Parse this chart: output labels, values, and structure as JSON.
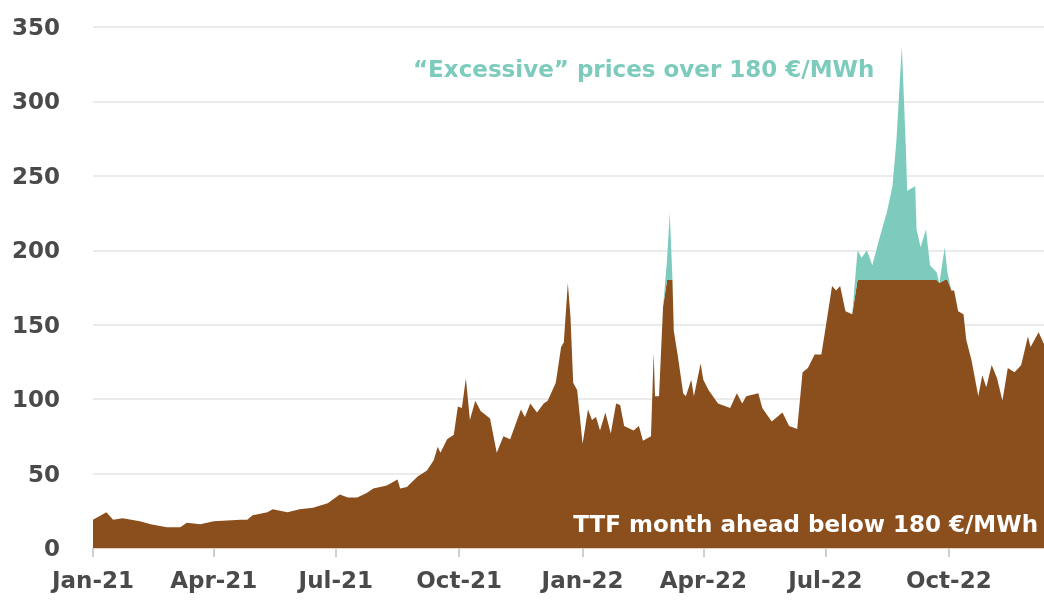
{
  "chart_data": {
    "type": "area",
    "stacked": true,
    "grid": "y",
    "x": [
      "2021-01-01",
      "2021-01-11",
      "2021-01-16",
      "2021-01-23",
      "2021-02-05",
      "2021-02-13",
      "2021-02-25",
      "2021-03-07",
      "2021-03-12",
      "2021-03-22",
      "2021-04-01",
      "2021-04-21",
      "2021-04-26",
      "2021-04-30",
      "2021-05-11",
      "2021-05-15",
      "2021-05-26",
      "2021-06-04",
      "2021-06-14",
      "2021-06-25",
      "2021-07-04",
      "2021-07-10",
      "2021-07-17",
      "2021-07-24",
      "2021-07-29",
      "2021-08-08",
      "2021-08-16",
      "2021-08-18",
      "2021-08-23",
      "2021-08-31",
      "2021-09-07",
      "2021-09-12",
      "2021-09-15",
      "2021-09-17",
      "2021-09-22",
      "2021-09-27",
      "2021-09-30",
      "2021-10-03",
      "2021-10-06",
      "2021-10-09",
      "2021-10-13",
      "2021-10-17",
      "2021-10-24",
      "2021-10-29",
      "2021-11-03",
      "2021-11-08",
      "2021-11-16",
      "2021-11-19",
      "2021-11-23",
      "2021-11-28",
      "2021-12-03",
      "2021-12-06",
      "2021-12-12",
      "2021-12-16",
      "2021-12-18",
      "2021-12-21",
      "2021-12-23",
      "2021-12-25",
      "2021-12-28",
      "2022-01-01",
      "2022-01-05",
      "2022-01-08",
      "2022-01-11",
      "2022-01-14",
      "2022-01-18",
      "2022-01-22",
      "2022-01-26",
      "2022-01-29",
      "2022-02-01",
      "2022-02-08",
      "2022-02-12",
      "2022-02-15",
      "2022-02-21",
      "2022-02-23",
      "2022-02-24",
      "2022-02-27",
      "2022-03-02",
      "2022-03-05",
      "2022-03-07",
      "2022-03-09",
      "2022-03-10",
      "2022-03-13",
      "2022-03-17",
      "2022-03-19",
      "2022-03-23",
      "2022-03-25",
      "2022-03-30",
      "2022-04-01",
      "2022-04-05",
      "2022-04-12",
      "2022-04-21",
      "2022-04-26",
      "2022-04-30",
      "2022-05-03",
      "2022-05-12",
      "2022-05-15",
      "2022-05-22",
      "2022-05-30",
      "2022-06-04",
      "2022-06-10",
      "2022-06-14",
      "2022-06-18",
      "2022-06-23",
      "2022-06-28",
      "2022-07-01",
      "2022-07-06",
      "2022-07-09",
      "2022-07-12",
      "2022-07-16",
      "2022-07-21",
      "2022-07-25",
      "2022-07-28",
      "2022-08-01",
      "2022-08-05",
      "2022-08-10",
      "2022-08-16",
      "2022-08-20",
      "2022-08-23",
      "2022-08-27",
      "2022-08-30",
      "2022-08-31",
      "2022-09-06",
      "2022-09-07",
      "2022-09-10",
      "2022-09-14",
      "2022-09-17",
      "2022-09-22",
      "2022-09-24",
      "2022-09-28",
      "2022-09-30",
      "2022-10-03",
      "2022-10-05",
      "2022-10-08",
      "2022-10-12",
      "2022-10-14",
      "2022-10-18",
      "2022-10-23",
      "2022-10-26",
      "2022-10-29",
      "2022-11-02",
      "2022-11-06",
      "2022-11-10",
      "2022-11-14",
      "2022-11-19",
      "2022-11-24",
      "2022-11-29",
      "2022-12-01",
      "2022-12-07",
      "2022-12-11"
    ],
    "series": [
      {
        "name": "TTF month ahead below 180 €/MWh",
        "color": "#8b4f1e",
        "values": [
          19,
          24,
          19,
          20,
          18,
          16,
          14,
          14,
          17,
          16,
          18,
          19,
          19,
          22,
          24,
          26,
          24,
          26,
          27,
          30,
          36,
          34,
          34,
          37,
          40,
          42,
          46,
          40,
          41,
          48,
          52,
          59,
          68,
          64,
          73,
          76,
          95,
          94,
          114,
          86,
          99,
          92,
          87,
          64,
          75,
          73,
          93,
          88,
          97,
          91,
          97,
          99,
          111,
          135,
          138,
          178,
          155,
          111,
          106,
          70,
          93,
          86,
          88,
          79,
          91,
          77,
          97,
          96,
          82,
          79,
          82,
          72,
          75,
          131,
          102,
          102,
          162,
          180,
          180,
          180,
          146,
          129,
          104,
          102,
          113,
          102,
          124,
          113,
          106,
          97,
          94,
          104,
          97,
          102,
          104,
          94,
          85,
          91,
          82,
          80,
          118,
          121,
          130,
          130,
          147,
          176,
          173,
          176,
          159,
          157,
          180,
          180,
          180,
          180,
          180,
          180,
          180,
          180,
          180,
          180,
          180,
          180,
          180,
          180,
          180,
          180,
          180,
          178,
          180,
          180,
          173,
          173,
          159,
          157,
          140,
          126,
          102,
          116,
          108,
          123,
          114,
          99,
          121,
          118,
          123,
          142,
          135,
          145,
          137
        ]
      },
      {
        "name": "“Excessive” prices over 180 €/MWh",
        "color": "#7ccbbd",
        "values": [
          0,
          0,
          0,
          0,
          0,
          0,
          0,
          0,
          0,
          0,
          0,
          0,
          0,
          0,
          0,
          0,
          0,
          0,
          0,
          0,
          0,
          0,
          0,
          0,
          0,
          0,
          0,
          0,
          0,
          0,
          0,
          0,
          0,
          0,
          0,
          0,
          0,
          0,
          0,
          0,
          0,
          0,
          0,
          0,
          0,
          0,
          0,
          0,
          0,
          0,
          0,
          0,
          0,
          0,
          0,
          0,
          0,
          0,
          0,
          0,
          0,
          0,
          0,
          0,
          0,
          0,
          0,
          0,
          0,
          0,
          0,
          0,
          0,
          0,
          0,
          0,
          0,
          14,
          45,
          1,
          0,
          0,
          0,
          0,
          0,
          0,
          0,
          0,
          0,
          0,
          0,
          0,
          0,
          0,
          0,
          0,
          0,
          0,
          0,
          0,
          0,
          0,
          0,
          0,
          0,
          0,
          0,
          0,
          0,
          0,
          20,
          15,
          20,
          10,
          27,
          46,
          63,
          94,
          157,
          89,
          60,
          63,
          34,
          22,
          34,
          10,
          5,
          0,
          22,
          5,
          0,
          0,
          0,
          0,
          0,
          0,
          0,
          0,
          0,
          0,
          0,
          0,
          0,
          0,
          0,
          0,
          0,
          0,
          0
        ]
      }
    ],
    "xlim": [
      "2021-01-01",
      "2022-12-11"
    ],
    "xticks": [
      {
        "value": "2021-01-01",
        "label": "Jan-21"
      },
      {
        "value": "2021-04-01",
        "label": "Apr-21"
      },
      {
        "value": "2021-07-01",
        "label": "Jul-21"
      },
      {
        "value": "2021-10-01",
        "label": "Oct-21"
      },
      {
        "value": "2022-01-01",
        "label": "Jan-22"
      },
      {
        "value": "2022-04-01",
        "label": "Apr-22"
      },
      {
        "value": "2022-07-01",
        "label": "Jul-22"
      },
      {
        "value": "2022-10-01",
        "label": "Oct-22"
      }
    ],
    "ylim": [
      0,
      350
    ],
    "yticks": [
      0,
      50,
      100,
      150,
      200,
      250,
      300,
      350
    ]
  }
}
